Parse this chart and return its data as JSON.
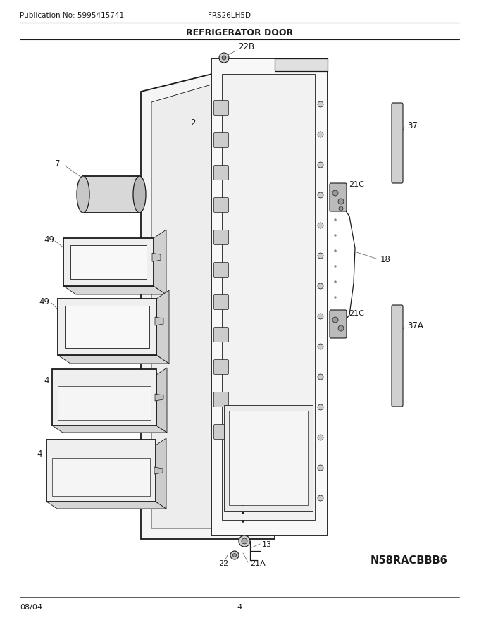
{
  "title": "REFRIGERATOR DOOR",
  "pub_no": "Publication No: 5995415741",
  "model": "FRS26LH5D",
  "date": "08/04",
  "page": "4",
  "diagram_id": "N58RACBBB6",
  "bg_color": "#ffffff",
  "lc": "#1a1a1a"
}
